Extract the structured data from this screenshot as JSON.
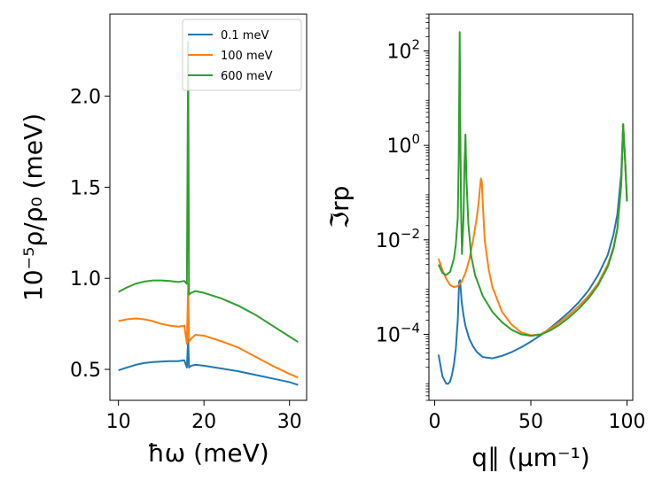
{
  "chart_data": [
    {
      "type": "line",
      "xlabel": "ħω (meV)",
      "ylabel": "10⁻⁵ρ/ρ₀ (meV)",
      "xlim": [
        9.0,
        32.0
      ],
      "ylim": [
        0.33,
        2.45
      ],
      "xticks": [
        10,
        20,
        30
      ],
      "xtick_labels": [
        "10",
        "20",
        "30"
      ],
      "yticks": [
        0.5,
        1.0,
        1.5,
        2.0
      ],
      "ytick_labels": [
        "0.5",
        "1.0",
        "1.5",
        "2.0"
      ],
      "legend": {
        "position": "top-right",
        "entries": [
          "0.1 meV",
          "100 meV",
          "600 meV"
        ]
      },
      "series": [
        {
          "name": "0.1 meV",
          "color": "#1f77b4",
          "x": [
            10,
            11,
            12,
            13,
            14,
            15,
            16,
            17,
            17.7,
            18.0,
            18.15,
            18.25,
            18.5,
            19,
            20,
            22,
            24,
            26,
            28,
            30,
            31
          ],
          "y": [
            0.495,
            0.51,
            0.525,
            0.535,
            0.54,
            0.543,
            0.545,
            0.545,
            0.55,
            0.51,
            0.67,
            0.51,
            0.52,
            0.525,
            0.52,
            0.505,
            0.49,
            0.47,
            0.45,
            0.43,
            0.415
          ]
        },
        {
          "name": "100 meV",
          "color": "#ff7f0e",
          "x": [
            10,
            11,
            12,
            13,
            14,
            15,
            16,
            17,
            17.7,
            18.0,
            18.15,
            18.25,
            18.5,
            19,
            20,
            22,
            24,
            26,
            28,
            30,
            31
          ],
          "y": [
            0.765,
            0.775,
            0.78,
            0.775,
            0.765,
            0.75,
            0.74,
            0.735,
            0.74,
            0.64,
            0.97,
            0.65,
            0.67,
            0.69,
            0.685,
            0.655,
            0.62,
            0.57,
            0.52,
            0.475,
            0.455
          ]
        },
        {
          "name": "600 meV",
          "color": "#2ca02c",
          "x": [
            10,
            11,
            12,
            13,
            14,
            15,
            16,
            17,
            17.7,
            18.0,
            18.15,
            18.25,
            18.5,
            19,
            20,
            22,
            24,
            26,
            28,
            30,
            31
          ],
          "y": [
            0.925,
            0.95,
            0.97,
            0.982,
            0.988,
            0.988,
            0.985,
            0.98,
            0.985,
            0.97,
            2.3,
            0.91,
            0.92,
            0.93,
            0.92,
            0.89,
            0.85,
            0.8,
            0.74,
            0.68,
            0.65
          ]
        }
      ]
    },
    {
      "type": "line",
      "xlabel": "q∥ (μm⁻¹)",
      "ylabel": "ℑrp",
      "xscale": "linear",
      "yscale": "log",
      "xlim": [
        -3,
        103
      ],
      "ylim": [
        4e-06,
        600
      ],
      "xticks": [
        0,
        50,
        100
      ],
      "xtick_labels": [
        "0",
        "50",
        "100"
      ],
      "yticks": [
        0.0001,
        0.01,
        1,
        100
      ],
      "ytick_labels": [
        {
          "base": "10",
          "exp": "−4"
        },
        {
          "base": "10",
          "exp": "−2"
        },
        {
          "base": "10",
          "exp": "0"
        },
        {
          "base": "10",
          "exp": "2"
        }
      ],
      "series": [
        {
          "name": "0.1 meV",
          "color": "#1f77b4",
          "x": [
            2,
            4,
            6,
            7,
            8,
            9,
            10,
            11,
            12,
            12.7,
            13.2,
            14,
            15,
            16,
            18,
            20,
            22,
            25,
            30,
            35,
            40,
            45,
            50,
            55,
            60,
            65,
            70,
            75,
            80,
            85,
            90,
            93,
            95,
            97,
            98,
            99,
            100
          ],
          "y": [
            3.7e-05,
            1.3e-05,
            9e-06,
            9e-06,
            1e-05,
            1.4e-05,
            2.3e-05,
            5e-05,
            0.0002,
            0.0013,
            0.0014,
            0.0005,
            0.00025,
            0.00015,
            8e-05,
            5.5e-05,
            4.2e-05,
            3.3e-05,
            3.1e-05,
            3.5e-05,
            4.2e-05,
            5.3e-05,
            7e-05,
            9.5e-05,
            0.000135,
            0.0002,
            0.0003,
            0.00048,
            0.00085,
            0.0018,
            0.0048,
            0.013,
            0.035,
            0.25,
            2.8,
            0.5,
            0.065
          ]
        },
        {
          "name": "100 meV",
          "color": "#ff7f0e",
          "x": [
            2,
            4,
            6,
            8,
            10,
            12,
            14,
            16,
            18,
            20,
            22,
            23,
            24,
            24.5,
            25,
            26,
            28,
            30,
            35,
            40,
            45,
            50,
            55,
            60,
            65,
            70,
            75,
            80,
            85,
            90,
            93,
            95,
            97,
            98,
            99,
            100
          ],
          "y": [
            0.004,
            0.0023,
            0.0015,
            0.0011,
            0.001,
            0.00105,
            0.0013,
            0.002,
            0.0038,
            0.01,
            0.032,
            0.07,
            0.2,
            0.17,
            0.06,
            0.01,
            0.0025,
            0.001,
            0.0003,
            0.00016,
            0.00011,
            9.5e-05,
            0.0001,
            0.00013,
            0.00018,
            0.00026,
            0.0004,
            0.00065,
            0.0012,
            0.003,
            0.007,
            0.018,
            0.15,
            2.8,
            0.5,
            0.065
          ]
        },
        {
          "name": "600 meV",
          "color": "#2ca02c",
          "x": [
            2,
            4,
            6,
            8,
            10,
            11,
            12,
            12.5,
            13,
            13.3,
            13.7,
            14.2,
            15,
            15.5,
            16,
            16.5,
            17.5,
            19,
            21,
            25,
            30,
            35,
            40,
            45,
            50,
            55,
            60,
            65,
            70,
            75,
            80,
            85,
            90,
            93,
            95,
            97,
            98,
            99,
            100
          ],
          "y": [
            0.003,
            0.002,
            0.0018,
            0.0021,
            0.004,
            0.008,
            0.03,
            0.5,
            250,
            3,
            0.05,
            0.005,
            0.03,
            0.4,
            1.7,
            0.2,
            0.022,
            0.0045,
            0.0018,
            0.00065,
            0.0003,
            0.00018,
            0.000125,
            0.0001,
            9.3e-05,
            9.8e-05,
            0.00012,
            0.00016,
            0.00023,
            0.00035,
            0.00058,
            0.0011,
            0.0027,
            0.0065,
            0.017,
            0.15,
            2.8,
            0.5,
            0.065
          ]
        }
      ]
    }
  ]
}
